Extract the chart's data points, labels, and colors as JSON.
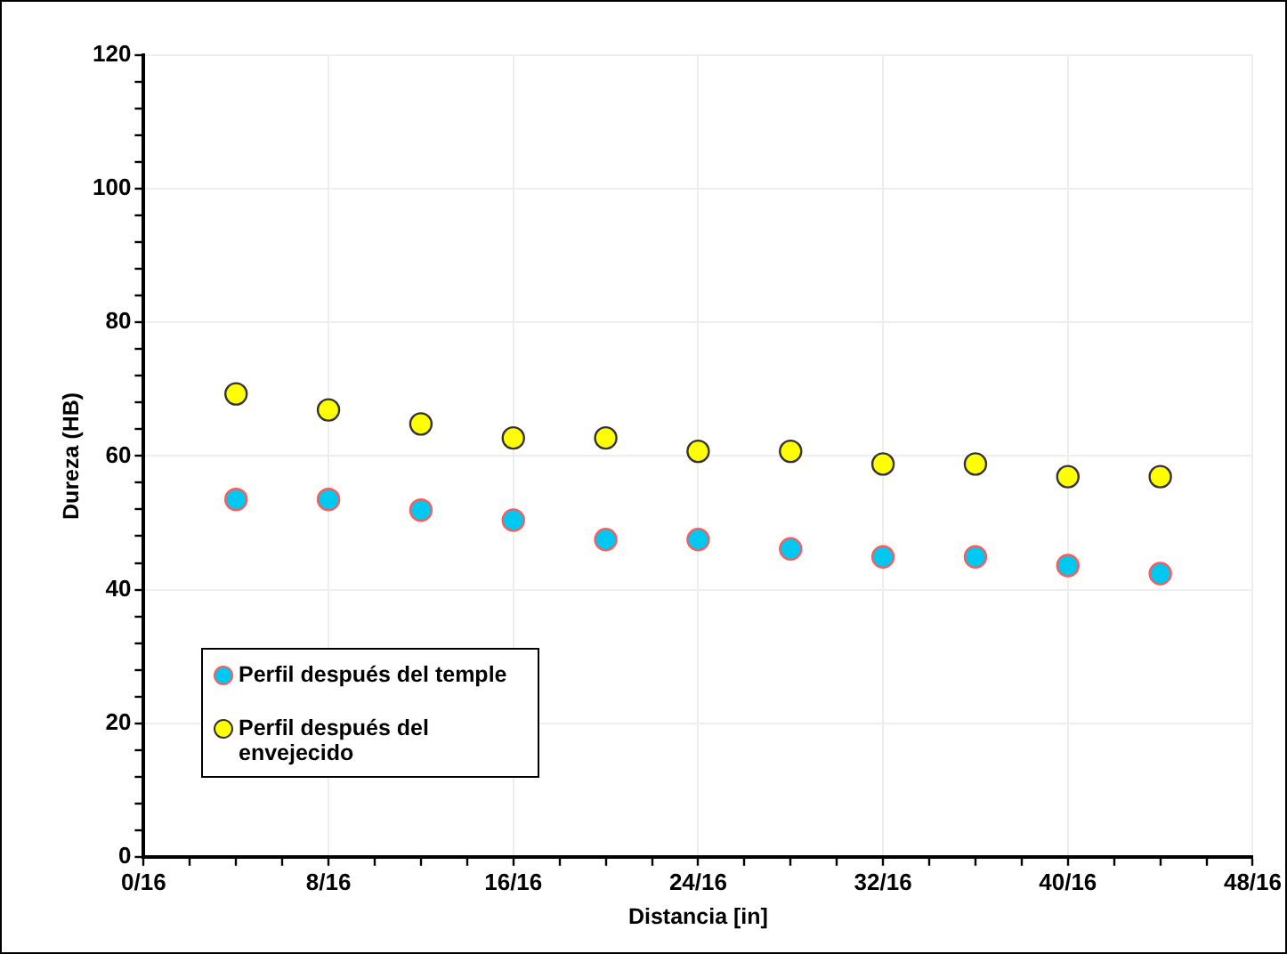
{
  "chart_data": {
    "type": "scatter",
    "xlabel": "Distancia [in]",
    "ylabel": "Dureza (HB)",
    "x": [
      0.25,
      0.5,
      0.75,
      1,
      1.25,
      1.5,
      1.75,
      2,
      2.25,
      2.5,
      2.75
    ],
    "series": [
      {
        "name": "Perfil después del temple",
        "color": "#00c8f0",
        "values": [
          53.5,
          53.5,
          51.9,
          50.4,
          47.5,
          47.5,
          46.1,
          44.9,
          44.9,
          43.6,
          42.4
        ]
      },
      {
        "name": "Perfil después del envejecido",
        "color": "#ffff00",
        "values": [
          69.3,
          66.9,
          64.8,
          62.7,
          62.7,
          60.7,
          60.7,
          58.8,
          58.8,
          56.9,
          56.9
        ]
      }
    ],
    "xlim": [
      0,
      3
    ],
    "xticks": [
      {
        "value": 0,
        "label": "0/16"
      },
      {
        "value": 0.125,
        "label": null
      },
      {
        "value": 0.25,
        "label": null
      },
      {
        "value": 0.375,
        "label": null
      },
      {
        "value": 0.5,
        "label": "8/16"
      },
      {
        "value": 0.625,
        "label": null
      },
      {
        "value": 0.75,
        "label": null
      },
      {
        "value": 0.875,
        "label": null
      },
      {
        "value": 1,
        "label": "16/16"
      },
      {
        "value": 1.125,
        "label": null
      },
      {
        "value": 1.25,
        "label": null
      },
      {
        "value": 1.375,
        "label": null
      },
      {
        "value": 1.5,
        "label": "24/16"
      },
      {
        "value": 1.625,
        "label": null
      },
      {
        "value": 1.75,
        "label": null
      },
      {
        "value": 1.875,
        "label": null
      },
      {
        "value": 2,
        "label": "32/16"
      },
      {
        "value": 2.125,
        "label": null
      },
      {
        "value": 2.25,
        "label": null
      },
      {
        "value": 2.375,
        "label": null
      },
      {
        "value": 2.5,
        "label": "40/16"
      },
      {
        "value": 2.625,
        "label": null
      },
      {
        "value": 2.75,
        "label": null
      },
      {
        "value": 2.875,
        "label": null
      },
      {
        "value": 3,
        "label": "48/16"
      }
    ],
    "ylim": [
      0,
      120
    ],
    "yticks": [
      0,
      {
        "value": 4,
        "label": null
      },
      {
        "value": 8,
        "label": null
      },
      {
        "value": 12,
        "label": null
      },
      {
        "value": 16,
        "label": null
      },
      20,
      {
        "value": 24,
        "label": null
      },
      {
        "value": 28,
        "label": null
      },
      {
        "value": 32,
        "label": null
      },
      {
        "value": 36,
        "label": null
      },
      40,
      {
        "value": 44,
        "label": null
      },
      {
        "value": 48,
        "label": null
      },
      {
        "value": 52,
        "label": null
      },
      {
        "value": 56,
        "label": null
      },
      60,
      {
        "value": 64,
        "label": null
      },
      {
        "value": 68,
        "label": null
      },
      {
        "value": 72,
        "label": null
      },
      {
        "value": 76,
        "label": null
      },
      80,
      {
        "value": 84,
        "label": null
      },
      {
        "value": 88,
        "label": null
      },
      {
        "value": 92,
        "label": null
      },
      {
        "value": 96,
        "label": null
      },
      100,
      {
        "value": 104,
        "label": null
      },
      {
        "value": 108,
        "label": null
      },
      {
        "value": 112,
        "label": null
      },
      {
        "value": 116,
        "label": null
      },
      120
    ],
    "grid": true,
    "legend": "bottom left",
    "marker": "circle"
  }
}
